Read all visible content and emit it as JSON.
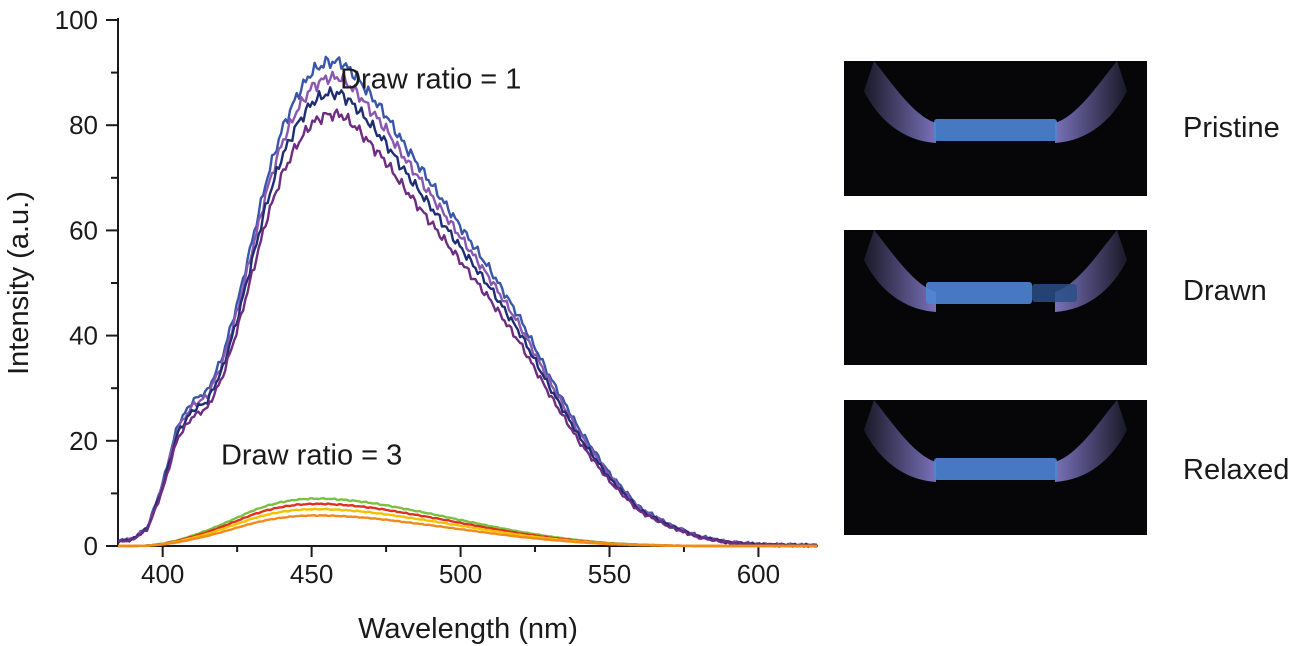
{
  "chart_data": {
    "type": "line",
    "xlabel": "Wavelength (nm)",
    "ylabel": "Intensity (a.u.)",
    "xlim": [
      385,
      620
    ],
    "ylim": [
      0,
      100
    ],
    "xticks": [
      400,
      450,
      500,
      550,
      600
    ],
    "yticks": [
      0,
      20,
      40,
      60,
      80,
      100
    ],
    "xticklabels": [
      "400",
      "450",
      "500",
      "550",
      "600"
    ],
    "yticklabels": [
      "0",
      "20",
      "40",
      "60",
      "80",
      "100"
    ],
    "annotations": [
      {
        "text": "Draw ratio = 1",
        "x": 490,
        "y": 87
      },
      {
        "text": "Draw ratio = 3",
        "x": 450,
        "y": 15.5
      }
    ],
    "series": [
      {
        "name": "draw-ratio-1-a",
        "group": "Draw ratio = 1",
        "color": "#3a56a8",
        "peak": 92
      },
      {
        "name": "draw-ratio-1-b",
        "group": "Draw ratio = 1",
        "color": "#8a58b0",
        "peak": 89
      },
      {
        "name": "draw-ratio-1-c",
        "group": "Draw ratio = 1",
        "color": "#1f2e72",
        "peak": 86
      },
      {
        "name": "draw-ratio-1-d",
        "group": "Draw ratio = 1",
        "color": "#6e2c82",
        "peak": 82
      },
      {
        "name": "draw-ratio-3-a",
        "group": "Draw ratio = 3",
        "color": "#7cc043",
        "peak": 9
      },
      {
        "name": "draw-ratio-3-b",
        "group": "Draw ratio = 3",
        "color": "#e03020",
        "peak": 8
      },
      {
        "name": "draw-ratio-3-c",
        "group": "Draw ratio = 3",
        "color": "#f2c200",
        "peak": 7
      },
      {
        "name": "draw-ratio-3-d",
        "group": "Draw ratio = 3",
        "color": "#f08a1c",
        "peak": 5.8
      }
    ],
    "shape_x": [
      385,
      390,
      395,
      400,
      405,
      410,
      415,
      420,
      425,
      430,
      435,
      440,
      445,
      450,
      455,
      460,
      465,
      470,
      475,
      480,
      490,
      500,
      510,
      520,
      530,
      540,
      550,
      560,
      570,
      580,
      590,
      600,
      610,
      620
    ],
    "shape_y_ratio1": [
      0.01,
      0.015,
      0.04,
      0.13,
      0.25,
      0.3,
      0.32,
      0.39,
      0.5,
      0.63,
      0.76,
      0.86,
      0.93,
      0.98,
      1.0,
      1.0,
      0.97,
      0.93,
      0.89,
      0.84,
      0.75,
      0.66,
      0.57,
      0.47,
      0.35,
      0.24,
      0.15,
      0.08,
      0.045,
      0.02,
      0.008,
      0.003,
      0.002,
      0.001
    ],
    "shape_y_ratio3": [
      0.0,
      0.0,
      0.01,
      0.05,
      0.12,
      0.22,
      0.33,
      0.46,
      0.6,
      0.74,
      0.85,
      0.93,
      0.98,
      1.0,
      1.0,
      0.98,
      0.95,
      0.91,
      0.86,
      0.8,
      0.68,
      0.55,
      0.42,
      0.3,
      0.2,
      0.12,
      0.06,
      0.03,
      0.01,
      0.0,
      0.0,
      0.0,
      0.0,
      0.0
    ]
  },
  "photos": [
    {
      "label": "Pristine",
      "state": "pristine"
    },
    {
      "label": "Drawn",
      "state": "drawn"
    },
    {
      "label": "Relaxed",
      "state": "relaxed"
    }
  ],
  "colors": {
    "glow": "#4e86d6",
    "grip": "#8c84d8",
    "background": "#060609"
  }
}
